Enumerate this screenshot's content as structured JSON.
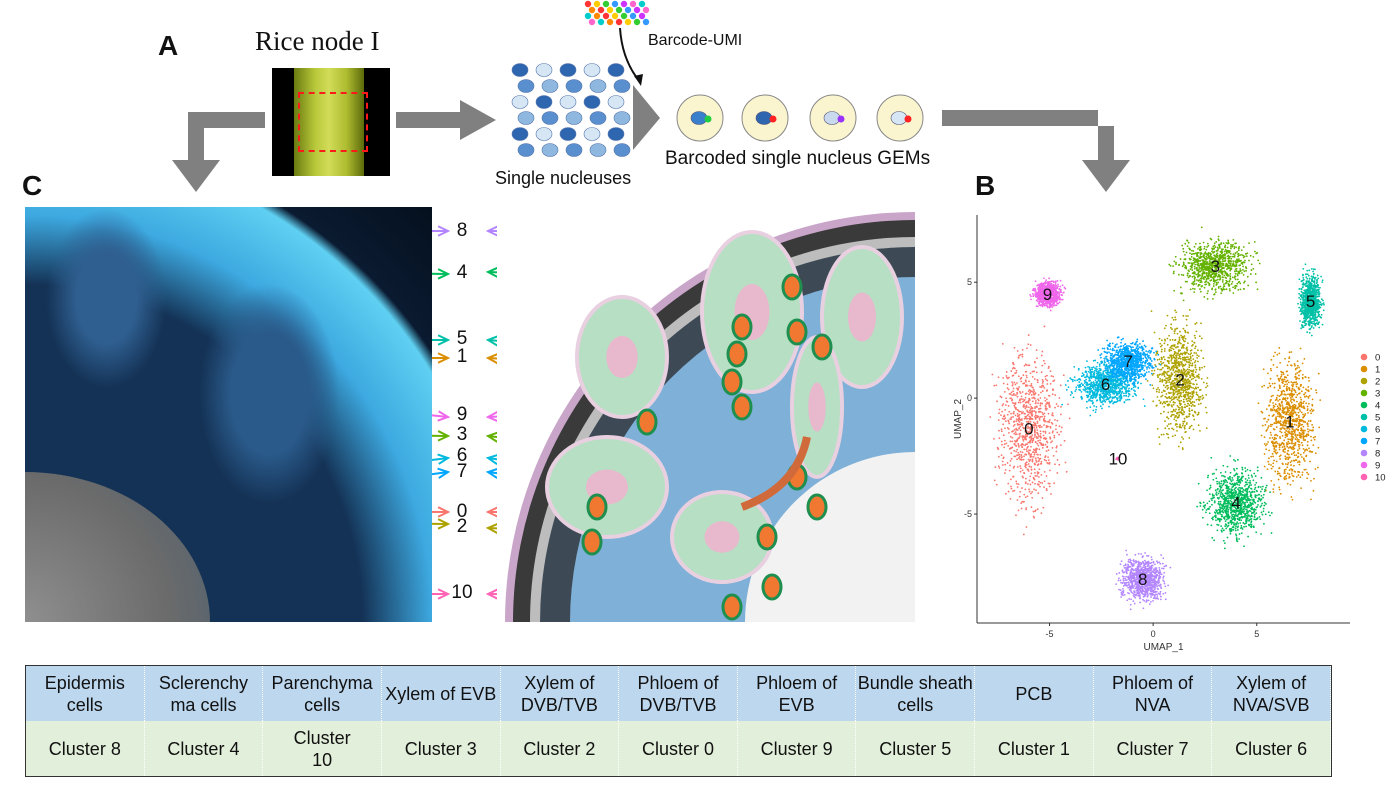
{
  "panels": {
    "a": "A",
    "b": "B",
    "c": "C"
  },
  "workflow": {
    "rice_title": "Rice node I",
    "barcode_label": "Barcode-UMI",
    "nuclei_label": "Single nucleuses",
    "gems_label": "Barcoded single nucleus GEMs"
  },
  "mapping_numbers": [
    "8",
    "4",
    "5",
    "1",
    "9",
    "3",
    "6",
    "7",
    "0",
    "2",
    "10"
  ],
  "chart_data": {
    "type": "scatter",
    "title": "",
    "xlabel": "UMAP_1",
    "ylabel": "UMAP_2",
    "xlim": [
      -8.5,
      9.5
    ],
    "ylim": [
      -9.7,
      7.9
    ],
    "xticks": [
      "-5",
      "0",
      "5"
    ],
    "xtick_values": [
      -5,
      0,
      5
    ],
    "yticks": [
      "5",
      "0",
      "-5"
    ],
    "ytick_values": [
      5,
      0,
      -5
    ],
    "grid": false,
    "legend_position": "right",
    "clusters": [
      {
        "name": "0",
        "color": "#F8766D",
        "center": [
          -6.0,
          -1.3
        ],
        "spread": [
          1.4,
          3.2
        ]
      },
      {
        "name": "1",
        "color": "#DB8E00",
        "center": [
          6.6,
          -1.0
        ],
        "spread": [
          1.2,
          2.6
        ]
      },
      {
        "name": "2",
        "color": "#AEA200",
        "center": [
          1.3,
          0.8
        ],
        "spread": [
          1.1,
          2.3
        ]
      },
      {
        "name": "3",
        "color": "#64B200",
        "center": [
          3.0,
          5.7
        ],
        "spread": [
          1.7,
          1.1
        ]
      },
      {
        "name": "4",
        "color": "#00BD5C",
        "center": [
          4.0,
          -4.5
        ],
        "spread": [
          1.3,
          1.4
        ]
      },
      {
        "name": "5",
        "color": "#00C1A7",
        "center": [
          7.6,
          4.2
        ],
        "spread": [
          0.5,
          1.1
        ]
      },
      {
        "name": "6",
        "color": "#00BADE",
        "center": [
          -2.3,
          0.6
        ],
        "spread": [
          1.4,
          0.9
        ]
      },
      {
        "name": "7",
        "color": "#00A6FF",
        "center": [
          -1.2,
          1.6
        ],
        "spread": [
          1.1,
          0.8
        ]
      },
      {
        "name": "8",
        "color": "#B385FF",
        "center": [
          -0.5,
          -7.8
        ],
        "spread": [
          1.0,
          0.9
        ]
      },
      {
        "name": "9",
        "color": "#EF67EB",
        "center": [
          -5.1,
          4.5
        ],
        "spread": [
          0.6,
          0.5
        ]
      },
      {
        "name": "10",
        "color": "#FF63B6",
        "center": [
          -1.7,
          -2.6
        ],
        "spread": [
          0.1,
          0.1
        ]
      }
    ]
  },
  "table": {
    "cell_types": [
      "Epidermis cells",
      "Sclerenchy ma cells",
      "Parenchyma cells",
      "Xylem of EVB",
      "Xylem of DVB/TVB",
      "Phloem of DVB/TVB",
      "Phloem of EVB",
      "Bundle sheath cells",
      "PCB",
      "Phloem of NVA",
      "Xylem of NVA/SVB"
    ],
    "clusters": [
      "Cluster 8",
      "Cluster 4",
      "Cluster 10",
      "Cluster 3",
      "Cluster 2",
      "Cluster 0",
      "Cluster 9",
      "Cluster 5",
      "Cluster 1",
      "Cluster 7",
      "Cluster 6"
    ]
  }
}
